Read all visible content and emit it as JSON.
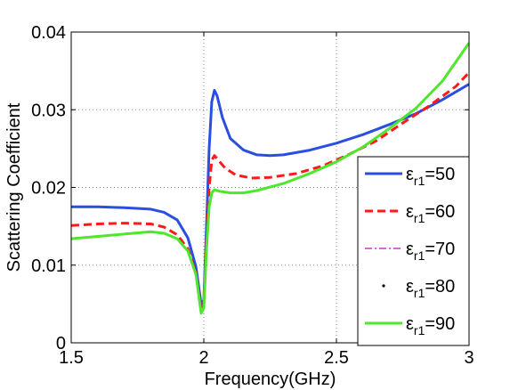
{
  "chart_data": {
    "type": "line",
    "title": "",
    "xlabel": "Frequency(GHz)",
    "ylabel": "Scattering Coefficient",
    "xlim": [
      1.5,
      3.0
    ],
    "ylim": [
      0,
      0.04
    ],
    "x_ticks": [
      "1.5",
      "2",
      "2.5",
      "3"
    ],
    "y_ticks": [
      "0",
      "0.01",
      "0.02",
      "0.03",
      "0.04"
    ],
    "grid": true,
    "legend_position": "right",
    "series": [
      {
        "name": "ε_r1=50",
        "legend_base": "ε",
        "legend_sub": "r1",
        "legend_value": "=50",
        "color": "#2a4fe0",
        "dash": "solid",
        "points": [
          [
            1.5,
            0.0175
          ],
          [
            1.6,
            0.0175
          ],
          [
            1.7,
            0.0174
          ],
          [
            1.8,
            0.0172
          ],
          [
            1.85,
            0.0168
          ],
          [
            1.9,
            0.0158
          ],
          [
            1.94,
            0.0135
          ],
          [
            1.97,
            0.0098
          ],
          [
            1.99,
            0.005
          ],
          [
            2.0,
            0.0055
          ],
          [
            2.01,
            0.015
          ],
          [
            2.02,
            0.025
          ],
          [
            2.03,
            0.031
          ],
          [
            2.04,
            0.0325
          ],
          [
            2.05,
            0.0318
          ],
          [
            2.07,
            0.029
          ],
          [
            2.1,
            0.0263
          ],
          [
            2.15,
            0.0248
          ],
          [
            2.2,
            0.0242
          ],
          [
            2.25,
            0.0241
          ],
          [
            2.3,
            0.0242
          ],
          [
            2.4,
            0.0248
          ],
          [
            2.5,
            0.0257
          ],
          [
            2.6,
            0.0268
          ],
          [
            2.7,
            0.0281
          ],
          [
            2.8,
            0.0295
          ],
          [
            2.9,
            0.0313
          ],
          [
            3.0,
            0.0333
          ]
        ]
      },
      {
        "name": "ε_r1=60",
        "legend_base": "ε",
        "legend_sub": "r1",
        "legend_value": "=60",
        "color": "#ff1a1a",
        "dash": "dashed",
        "points": [
          [
            1.5,
            0.0151
          ],
          [
            1.6,
            0.0153
          ],
          [
            1.7,
            0.0154
          ],
          [
            1.8,
            0.0153
          ],
          [
            1.85,
            0.0149
          ],
          [
            1.9,
            0.0139
          ],
          [
            1.94,
            0.0121
          ],
          [
            1.97,
            0.009
          ],
          [
            1.99,
            0.0045
          ],
          [
            2.0,
            0.005
          ],
          [
            2.01,
            0.013
          ],
          [
            2.02,
            0.02
          ],
          [
            2.03,
            0.0235
          ],
          [
            2.04,
            0.0241
          ],
          [
            2.05,
            0.0237
          ],
          [
            2.08,
            0.0225
          ],
          [
            2.12,
            0.0216
          ],
          [
            2.18,
            0.0212
          ],
          [
            2.25,
            0.0213
          ],
          [
            2.35,
            0.0218
          ],
          [
            2.45,
            0.0228
          ],
          [
            2.55,
            0.0243
          ],
          [
            2.65,
            0.026
          ],
          [
            2.75,
            0.0283
          ],
          [
            2.85,
            0.0305
          ],
          [
            2.95,
            0.033
          ],
          [
            3.0,
            0.0348
          ]
        ]
      },
      {
        "name": "ε_r1=70",
        "legend_base": "ε",
        "legend_sub": "r1",
        "legend_value": "=70",
        "color": "#cc33cc",
        "dash": "dashdot",
        "points": []
      },
      {
        "name": "ε_r1=80",
        "legend_base": "ε",
        "legend_sub": "r1",
        "legend_value": "=80",
        "color": "#000000",
        "dash": "dot",
        "points": []
      },
      {
        "name": "ε_r1=90",
        "legend_base": "ε",
        "legend_sub": "r1",
        "legend_value": "=90",
        "color": "#4ee62e",
        "dash": "solid",
        "points": [
          [
            1.5,
            0.0134
          ],
          [
            1.6,
            0.0137
          ],
          [
            1.7,
            0.014
          ],
          [
            1.8,
            0.0143
          ],
          [
            1.85,
            0.0141
          ],
          [
            1.9,
            0.0134
          ],
          [
            1.94,
            0.0118
          ],
          [
            1.97,
            0.0088
          ],
          [
            1.99,
            0.0038
          ],
          [
            2.0,
            0.0045
          ],
          [
            2.01,
            0.012
          ],
          [
            2.02,
            0.0175
          ],
          [
            2.03,
            0.0193
          ],
          [
            2.04,
            0.0197
          ],
          [
            2.06,
            0.0195
          ],
          [
            2.1,
            0.0193
          ],
          [
            2.15,
            0.0193
          ],
          [
            2.2,
            0.0196
          ],
          [
            2.3,
            0.0205
          ],
          [
            2.4,
            0.0218
          ],
          [
            2.5,
            0.0233
          ],
          [
            2.6,
            0.0252
          ],
          [
            2.7,
            0.0276
          ],
          [
            2.8,
            0.0302
          ],
          [
            2.9,
            0.0337
          ],
          [
            3.0,
            0.0386
          ]
        ]
      }
    ]
  }
}
